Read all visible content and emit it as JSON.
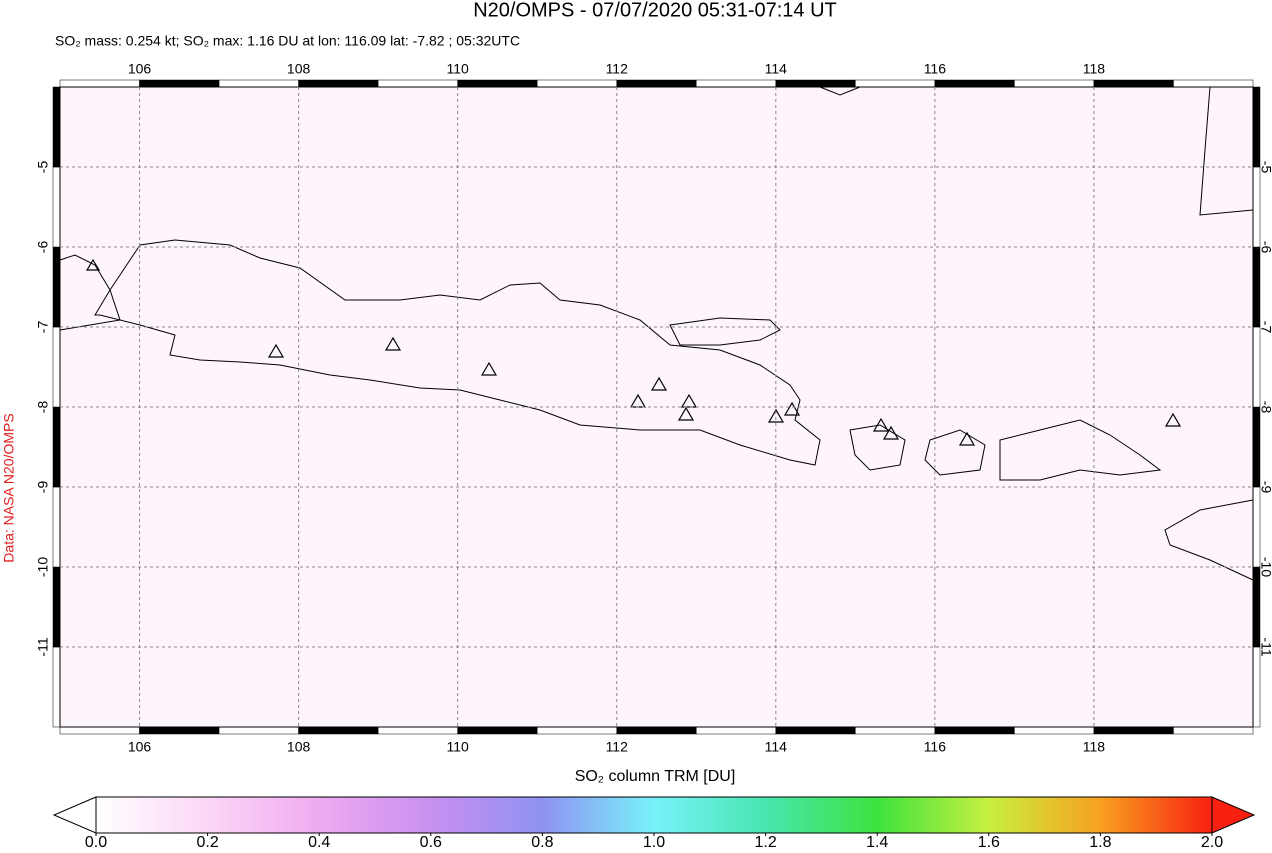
{
  "chart_data": {
    "type": "map",
    "title": "N20/OMPS - 07/07/2020 05:31-07:14 UT",
    "subtitle": "SO₂ mass: 0.254 kt; SO₂ max: 1.16 DU at lon: 116.09 lat: -7.82 ; 05:32UTC",
    "source": "Data: NASA N20/OMPS",
    "xlim": [
      105,
      120
    ],
    "ylim": [
      -12,
      -4
    ],
    "xticks": [
      106,
      108,
      110,
      112,
      114,
      116,
      118
    ],
    "yticks": [
      -5,
      -6,
      -7,
      -8,
      -9,
      -10,
      -11
    ],
    "grid": true,
    "colorbar": {
      "label": "SO₂ column TRM [DU]",
      "lim": [
        0,
        2
      ],
      "ticks": [
        {
          "value": 0,
          "label": "0.0"
        },
        0.2,
        0.4,
        0.6,
        0.8,
        {
          "value": 1,
          "label": "1.0"
        },
        1.2,
        1.4,
        1.6,
        1.8,
        {
          "value": 2,
          "label": "2.0"
        }
      ],
      "colors": [
        "#ffffff",
        "#fbd6f6",
        "#eeaaf0",
        "#c890f0",
        "#8f92f2",
        "#78f2fa",
        "#48e6b0",
        "#3ee23e",
        "#c8f040",
        "#f8a020",
        "#f82010"
      ]
    }
  }
}
